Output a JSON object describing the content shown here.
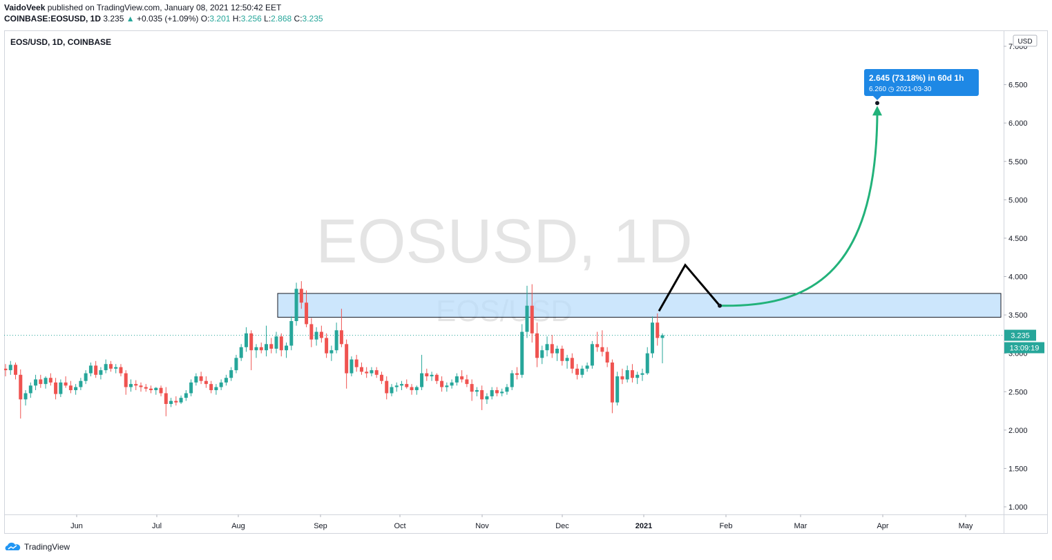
{
  "header": {
    "author": "VaidoVeek",
    "published": "published on TradingView.com, January 08, 2021 12:50:42 EET",
    "symbol": "COINBASE:EOSUSD, 1D",
    "last": "3.235",
    "change": "+0.035 (+1.09%)",
    "o_label": "O:",
    "o": "3.201",
    "h_label": "H:",
    "h": "3.256",
    "l_label": "L:",
    "l": "2.868",
    "c_label": "C:",
    "c": "3.235"
  },
  "chart": {
    "legend": "EOS/USD, 1D, COINBASE",
    "watermark": "EOSUSD, 1D",
    "watermark_sub": "EOS/USD",
    "currency": "USD",
    "price_label": "3.235",
    "countdown": "13:09:19",
    "measure_main": "2.645 (73.18%) in 60d 1h",
    "measure_sub": "6.260 ◷ 2021-03-30"
  },
  "chart_data": {
    "type": "candlestick",
    "symbol": "EOSUSD",
    "exchange": "COINBASE",
    "interval": "1D",
    "ylim": [
      0.9,
      7.1
    ],
    "y_ticks": [
      "1.000",
      "1.500",
      "2.000",
      "2.500",
      "3.000",
      "3.500",
      "4.000",
      "4.500",
      "5.000",
      "5.500",
      "6.000",
      "6.500",
      "7.000"
    ],
    "x_ticks": [
      "Jun",
      "Jul",
      "Aug",
      "Sep",
      "Oct",
      "Nov",
      "Dec",
      "2021",
      "Feb",
      "Mar",
      "Apr",
      "May"
    ],
    "last_price": 3.235,
    "zone": {
      "low": 3.47,
      "high": 3.78
    },
    "projection": {
      "peak": 4.15,
      "retest": 3.62,
      "target": 6.26,
      "target_date": "2021-03-30"
    },
    "candles": [
      [
        2.8,
        2.86,
        2.7,
        2.78
      ],
      [
        2.78,
        2.9,
        2.72,
        2.85
      ],
      [
        2.85,
        2.88,
        2.66,
        2.72
      ],
      [
        2.72,
        2.79,
        2.15,
        2.4
      ],
      [
        2.4,
        2.52,
        2.32,
        2.48
      ],
      [
        2.48,
        2.62,
        2.42,
        2.58
      ],
      [
        2.58,
        2.72,
        2.52,
        2.66
      ],
      [
        2.66,
        2.72,
        2.55,
        2.6
      ],
      [
        2.6,
        2.7,
        2.54,
        2.68
      ],
      [
        2.68,
        2.74,
        2.58,
        2.62
      ],
      [
        2.62,
        2.68,
        2.4,
        2.47
      ],
      [
        2.47,
        2.66,
        2.43,
        2.62
      ],
      [
        2.62,
        2.7,
        2.55,
        2.58
      ],
      [
        2.58,
        2.64,
        2.48,
        2.52
      ],
      [
        2.52,
        2.6,
        2.46,
        2.56
      ],
      [
        2.56,
        2.68,
        2.52,
        2.64
      ],
      [
        2.64,
        2.78,
        2.6,
        2.74
      ],
      [
        2.74,
        2.88,
        2.7,
        2.84
      ],
      [
        2.84,
        2.9,
        2.68,
        2.72
      ],
      [
        2.72,
        2.82,
        2.66,
        2.78
      ],
      [
        2.78,
        2.92,
        2.74,
        2.86
      ],
      [
        2.86,
        2.9,
        2.76,
        2.8
      ],
      [
        2.8,
        2.86,
        2.74,
        2.82
      ],
      [
        2.82,
        2.86,
        2.7,
        2.74
      ],
      [
        2.74,
        2.78,
        2.46,
        2.56
      ],
      [
        2.56,
        2.66,
        2.5,
        2.6
      ],
      [
        2.6,
        2.65,
        2.52,
        2.58
      ],
      [
        2.58,
        2.62,
        2.5,
        2.56
      ],
      [
        2.56,
        2.6,
        2.5,
        2.54
      ],
      [
        2.54,
        2.58,
        2.48,
        2.52
      ],
      [
        2.52,
        2.56,
        2.46,
        2.55
      ],
      [
        2.55,
        2.58,
        2.44,
        2.48
      ],
      [
        2.48,
        2.56,
        2.18,
        2.34
      ],
      [
        2.34,
        2.42,
        2.3,
        2.38
      ],
      [
        2.38,
        2.44,
        2.32,
        2.36
      ],
      [
        2.36,
        2.45,
        2.34,
        2.42
      ],
      [
        2.42,
        2.52,
        2.38,
        2.48
      ],
      [
        2.48,
        2.66,
        2.44,
        2.62
      ],
      [
        2.62,
        2.74,
        2.58,
        2.7
      ],
      [
        2.7,
        2.76,
        2.6,
        2.64
      ],
      [
        2.64,
        2.7,
        2.55,
        2.6
      ],
      [
        2.6,
        2.64,
        2.48,
        2.52
      ],
      [
        2.52,
        2.6,
        2.46,
        2.56
      ],
      [
        2.56,
        2.66,
        2.52,
        2.62
      ],
      [
        2.62,
        2.72,
        2.58,
        2.68
      ],
      [
        2.68,
        2.82,
        2.64,
        2.78
      ],
      [
        2.78,
        2.98,
        2.74,
        2.94
      ],
      [
        2.94,
        3.12,
        2.9,
        3.08
      ],
      [
        3.08,
        3.34,
        3.02,
        3.26
      ],
      [
        3.26,
        3.3,
        2.78,
        3.04
      ],
      [
        3.04,
        3.12,
        2.94,
        3.08
      ],
      [
        3.08,
        3.14,
        3.0,
        3.04
      ],
      [
        3.04,
        3.36,
        2.96,
        3.12
      ],
      [
        3.12,
        3.2,
        3.0,
        3.06
      ],
      [
        3.06,
        3.28,
        3.0,
        3.22
      ],
      [
        3.22,
        3.26,
        2.96,
        3.04
      ],
      [
        3.04,
        3.14,
        2.94,
        3.1
      ],
      [
        3.1,
        3.48,
        3.04,
        3.42
      ],
      [
        3.42,
        3.92,
        3.36,
        3.84
      ],
      [
        3.84,
        3.94,
        3.58,
        3.66
      ],
      [
        3.66,
        3.82,
        3.34,
        3.38
      ],
      [
        3.38,
        3.46,
        3.08,
        3.18
      ],
      [
        3.18,
        3.34,
        3.1,
        3.28
      ],
      [
        3.28,
        3.36,
        3.14,
        3.2
      ],
      [
        3.2,
        3.26,
        2.94,
        3.0
      ],
      [
        3.0,
        3.1,
        2.9,
        3.04
      ],
      [
        3.04,
        3.4,
        3.0,
        3.3
      ],
      [
        3.3,
        3.58,
        3.08,
        3.12
      ],
      [
        3.12,
        3.18,
        2.54,
        2.74
      ],
      [
        2.74,
        2.96,
        2.7,
        2.92
      ],
      [
        2.92,
        2.98,
        2.76,
        2.82
      ],
      [
        2.82,
        2.88,
        2.72,
        2.76
      ],
      [
        2.76,
        2.82,
        2.68,
        2.74
      ],
      [
        2.74,
        2.82,
        2.7,
        2.78
      ],
      [
        2.78,
        2.82,
        2.68,
        2.72
      ],
      [
        2.72,
        2.76,
        2.6,
        2.64
      ],
      [
        2.64,
        2.7,
        2.4,
        2.48
      ],
      [
        2.48,
        2.6,
        2.44,
        2.56
      ],
      [
        2.56,
        2.62,
        2.5,
        2.58
      ],
      [
        2.58,
        2.64,
        2.52,
        2.6
      ],
      [
        2.6,
        2.66,
        2.54,
        2.56
      ],
      [
        2.56,
        2.6,
        2.46,
        2.52
      ],
      [
        2.52,
        2.58,
        2.46,
        2.56
      ],
      [
        2.56,
        2.98,
        2.52,
        2.74
      ],
      [
        2.74,
        2.8,
        2.64,
        2.7
      ],
      [
        2.7,
        2.76,
        2.64,
        2.72
      ],
      [
        2.72,
        2.74,
        2.6,
        2.64
      ],
      [
        2.64,
        2.7,
        2.5,
        2.56
      ],
      [
        2.56,
        2.62,
        2.5,
        2.58
      ],
      [
        2.58,
        2.66,
        2.54,
        2.62
      ],
      [
        2.62,
        2.74,
        2.58,
        2.7
      ],
      [
        2.7,
        2.78,
        2.62,
        2.66
      ],
      [
        2.66,
        2.72,
        2.56,
        2.6
      ],
      [
        2.6,
        2.66,
        2.38,
        2.5
      ],
      [
        2.5,
        2.56,
        2.44,
        2.52
      ],
      [
        2.52,
        2.58,
        2.26,
        2.4
      ],
      [
        2.4,
        2.48,
        2.34,
        2.44
      ],
      [
        2.44,
        2.56,
        2.4,
        2.52
      ],
      [
        2.52,
        2.56,
        2.44,
        2.48
      ],
      [
        2.48,
        2.54,
        2.44,
        2.5
      ],
      [
        2.5,
        2.6,
        2.46,
        2.56
      ],
      [
        2.56,
        2.78,
        2.52,
        2.74
      ],
      [
        2.74,
        2.82,
        2.66,
        2.72
      ],
      [
        2.72,
        3.38,
        2.68,
        3.28
      ],
      [
        3.28,
        3.88,
        3.2,
        3.62
      ],
      [
        3.62,
        3.9,
        3.14,
        3.26
      ],
      [
        3.26,
        3.4,
        2.82,
        2.94
      ],
      [
        2.94,
        3.1,
        2.86,
        3.04
      ],
      [
        3.04,
        3.22,
        2.96,
        3.12
      ],
      [
        3.12,
        3.24,
        2.94,
        3.0
      ],
      [
        3.0,
        3.1,
        2.9,
        3.06
      ],
      [
        3.06,
        3.1,
        2.84,
        2.9
      ],
      [
        2.9,
        2.98,
        2.8,
        2.94
      ],
      [
        2.94,
        3.0,
        2.74,
        2.8
      ],
      [
        2.8,
        2.86,
        2.66,
        2.72
      ],
      [
        2.72,
        2.84,
        2.68,
        2.8
      ],
      [
        2.8,
        2.88,
        2.76,
        2.84
      ],
      [
        2.84,
        3.16,
        2.8,
        3.12
      ],
      [
        3.12,
        3.28,
        3.02,
        3.08
      ],
      [
        3.08,
        3.3,
        2.96,
        3.02
      ],
      [
        3.02,
        3.08,
        2.82,
        2.88
      ],
      [
        2.88,
        2.92,
        2.22,
        2.36
      ],
      [
        2.36,
        2.76,
        2.32,
        2.7
      ],
      [
        2.7,
        2.8,
        2.6,
        2.66
      ],
      [
        2.66,
        2.84,
        2.62,
        2.78
      ],
      [
        2.78,
        2.86,
        2.62,
        2.68
      ],
      [
        2.68,
        2.76,
        2.6,
        2.72
      ],
      [
        2.72,
        2.8,
        2.64,
        2.74
      ],
      [
        2.74,
        3.08,
        2.72,
        3.0
      ],
      [
        3.0,
        3.48,
        2.94,
        3.4
      ],
      [
        3.4,
        3.52,
        3.1,
        3.2
      ],
      [
        3.2,
        3.26,
        2.87,
        3.235
      ]
    ]
  }
}
